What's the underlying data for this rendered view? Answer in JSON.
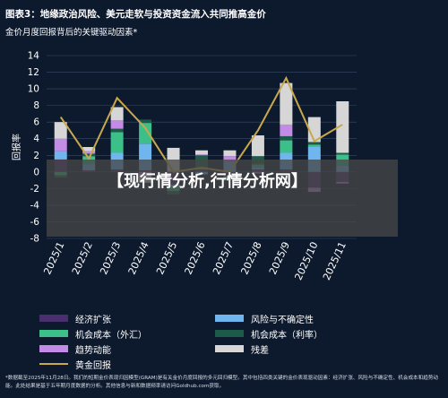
{
  "header": {
    "title": "图表3：地缘政治风险、美元走软与投资资金流入共同推高金价",
    "subtitle": "金价月度回报背后的关键驱动因素*"
  },
  "overlay": {
    "text": "【现行情分析,行情分析网】"
  },
  "legend": {
    "items": [
      {
        "label": "经济扩张",
        "color": "#4a2f6e",
        "kind": "box"
      },
      {
        "label": "风险与不确定性",
        "color": "#6fb6ee",
        "kind": "box"
      },
      {
        "label": "机会成本（外汇）",
        "color": "#3dbf8a",
        "kind": "box"
      },
      {
        "label": "机会成本（利率）",
        "color": "#1e5a4a",
        "kind": "box"
      },
      {
        "label": "趋势动能",
        "color": "#c38be6",
        "kind": "box"
      },
      {
        "label": "残差",
        "color": "#d6d6d6",
        "kind": "box"
      },
      {
        "label": "黄金回报",
        "color": "#c9a84c",
        "kind": "line"
      }
    ]
  },
  "footnote": "*数据截至2025年11月28日。我们的短期金价表现归因模型(GRAM)是有关金价月度回报的多元回归模型。其中包括四类关键的金价表现驱动因素：经济扩张、风险与不确定性、机会成本和趋势动能。此处结果是基于五年期月度数据的分析。其他信息与新和数据频率请访问Goldhub.com获取。",
  "chart_data": {
    "type": "bar",
    "stacked": true,
    "ylabel": "回报率",
    "ylim": [
      -8,
      14
    ],
    "yticks": [
      -8,
      -6,
      -4,
      -2,
      0,
      2,
      4,
      6,
      8,
      10,
      12,
      14
    ],
    "grid": true,
    "categories": [
      "2025/1",
      "2025/2",
      "2025/3",
      "2025/4",
      "2025/5",
      "2025/6",
      "2025/7",
      "2025/8",
      "2025/9",
      "2025/10",
      "2025/11"
    ],
    "series": [
      {
        "name": "经济扩张",
        "color": "#4a2f6e",
        "values": [
          1.5,
          0.2,
          0.3,
          0.2,
          -1.5,
          0.3,
          -0.5,
          0.3,
          0.3,
          -1.9,
          -1.2
        ]
      },
      {
        "name": "风险与不确定性",
        "color": "#6fb6ee",
        "values": [
          1.0,
          0.7,
          2.0,
          3.2,
          -0.3,
          -0.3,
          1.2,
          0.3,
          2.0,
          3.0,
          0.8
        ]
      },
      {
        "name": "机会成本（外汇）",
        "color": "#3dbf8a",
        "values": [
          -0.4,
          1.0,
          2.5,
          2.5,
          -0.5,
          0.2,
          -0.3,
          0.3,
          1.5,
          0.3,
          1.3
        ]
      },
      {
        "name": "机会成本（利率）",
        "color": "#1e5a4a",
        "values": [
          -0.3,
          0.3,
          0.4,
          0.4,
          -0.4,
          1.5,
          -0.3,
          1.0,
          0.5,
          0.3,
          0.2
        ]
      },
      {
        "name": "趋势动能",
        "color": "#c38be6",
        "values": [
          1.5,
          0.3,
          1.0,
          -0.3,
          0.1,
          0.1,
          0.7,
          -0.2,
          1.4,
          -0.5,
          -0.2
        ]
      },
      {
        "name": "残差",
        "color": "#d6d6d6",
        "values": [
          2.0,
          0.5,
          1.6,
          -1.0,
          2.8,
          0.5,
          0.7,
          2.5,
          5.0,
          3.0,
          6.2
        ]
      }
    ],
    "line": {
      "name": "黄金回报",
      "color": "#c9a84c",
      "values": [
        6.6,
        1.6,
        8.9,
        5.3,
        0.0,
        0.5,
        0.0,
        5.0,
        11.3,
        3.7,
        5.7
      ]
    }
  }
}
